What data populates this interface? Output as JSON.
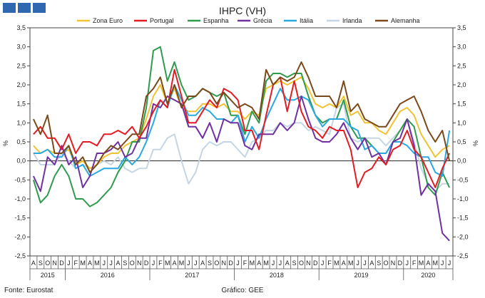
{
  "chart_data": {
    "type": "line",
    "title": "IHPC (VH)",
    "ylabel_left": "%",
    "ylabel_right": "%",
    "ylim": [
      -2.5,
      3.5
    ],
    "yticks": [
      "3,5",
      "3,0",
      "2,5",
      "2,0",
      "1,5",
      "1,0",
      "0,5",
      "0,0",
      "-0,5",
      "-1,0",
      "-1,5",
      "-2,0",
      "-2,5"
    ],
    "month_labels": [
      "A",
      "S",
      "O",
      "N",
      "D",
      "J",
      "F",
      "M",
      "A",
      "M",
      "J",
      "J",
      "A",
      "S",
      "O",
      "N",
      "D",
      "J",
      "F",
      "M",
      "A",
      "M",
      "J",
      "J",
      "A",
      "S",
      "O",
      "N",
      "D",
      "J",
      "F",
      "M",
      "A",
      "M",
      "J",
      "J",
      "A",
      "S",
      "O",
      "N",
      "D",
      "J",
      "F",
      "M",
      "A",
      "M",
      "J",
      "J",
      "A",
      "S",
      "O",
      "N",
      "D",
      "J",
      "F",
      "M",
      "A",
      "M",
      "J",
      "J"
    ],
    "year_labels": [
      {
        "label": "2015",
        "start": 0,
        "end": 4
      },
      {
        "label": "2016",
        "start": 5,
        "end": 16
      },
      {
        "label": "2017",
        "start": 17,
        "end": 28
      },
      {
        "label": "2018",
        "start": 29,
        "end": 40
      },
      {
        "label": "2019",
        "start": 41,
        "end": 52
      },
      {
        "label": "2020",
        "start": 53,
        "end": 59
      }
    ],
    "series": [
      {
        "name": "Zona Euro",
        "color": "#f1c232",
        "values": [
          0.4,
          0.2,
          0.3,
          0.2,
          0.2,
          0.3,
          -0.1,
          0.0,
          -0.2,
          -0.1,
          0.1,
          0.2,
          0.2,
          0.4,
          0.5,
          0.6,
          1.1,
          1.7,
          2.0,
          1.5,
          1.9,
          1.4,
          1.3,
          1.3,
          1.5,
          1.5,
          1.4,
          1.5,
          1.3,
          1.3,
          1.1,
          1.3,
          1.2,
          1.9,
          2.0,
          2.1,
          2.0,
          2.1,
          2.2,
          1.9,
          1.5,
          1.4,
          1.5,
          1.4,
          1.7,
          1.2,
          1.3,
          1.0,
          1.0,
          0.8,
          0.7,
          1.0,
          1.3,
          1.4,
          1.2,
          0.7,
          0.4,
          0.1,
          0.3,
          0.4
        ]
      },
      {
        "name": "Portugal",
        "color": "#e31c23",
        "values": [
          0.7,
          0.9,
          0.6,
          0.6,
          0.3,
          0.7,
          0.2,
          0.5,
          0.5,
          0.4,
          0.7,
          0.7,
          0.8,
          0.7,
          0.9,
          0.6,
          0.9,
          1.3,
          1.6,
          1.4,
          2.4,
          1.7,
          1.0,
          1.0,
          1.3,
          1.6,
          1.4,
          1.9,
          1.8,
          1.6,
          0.8,
          0.8,
          0.3,
          1.2,
          2.0,
          2.2,
          1.3,
          2.1,
          1.3,
          0.9,
          0.8,
          0.6,
          0.9,
          0.8,
          0.8,
          0.3,
          -0.7,
          -0.3,
          -0.2,
          0.1,
          -0.1,
          0.3,
          0.4,
          0.8,
          0.3,
          0.1,
          -0.3,
          -0.7,
          -0.2,
          0.2
        ]
      },
      {
        "name": "Espanha",
        "color": "#2e9b4e",
        "values": [
          -0.5,
          -1.1,
          -0.9,
          -0.4,
          -0.1,
          -0.4,
          -1.0,
          -1.0,
          -1.2,
          -1.1,
          -0.9,
          -0.7,
          -0.3,
          0.0,
          0.5,
          0.5,
          1.4,
          2.9,
          3.0,
          2.1,
          2.6,
          2.0,
          1.6,
          1.7,
          1.9,
          1.8,
          1.7,
          1.8,
          1.2,
          1.2,
          0.7,
          1.3,
          1.0,
          2.1,
          2.3,
          2.3,
          2.2,
          2.3,
          2.3,
          1.7,
          1.2,
          1.0,
          1.1,
          1.1,
          1.6,
          0.9,
          0.6,
          0.6,
          0.4,
          0.2,
          0.2,
          0.5,
          0.8,
          1.1,
          0.9,
          0.1,
          -0.7,
          -0.9,
          -0.3,
          -0.7
        ]
      },
      {
        "name": "Grécia",
        "color": "#7030a0",
        "values": [
          -0.4,
          -0.8,
          0.1,
          -0.1,
          0.4,
          -0.1,
          0.1,
          -0.7,
          -0.4,
          0.2,
          0.2,
          0.3,
          0.5,
          0.1,
          0.2,
          0.6,
          0.6,
          1.5,
          1.4,
          1.7,
          1.6,
          1.5,
          0.9,
          0.9,
          0.6,
          1.0,
          0.5,
          1.1,
          1.0,
          1.0,
          0.4,
          0.3,
          0.7,
          0.7,
          0.7,
          1.0,
          0.8,
          1.0,
          1.7,
          1.1,
          0.6,
          0.5,
          0.5,
          0.7,
          1.0,
          0.6,
          0.3,
          0.6,
          0.1,
          0.2,
          -0.1,
          0.5,
          0.6,
          1.1,
          0.4,
          -0.9,
          -0.6,
          -0.8,
          -1.9,
          -2.1
        ]
      },
      {
        "name": "Itália",
        "color": "#29a9e0",
        "values": [
          0.2,
          0.2,
          0.3,
          0.1,
          0.1,
          0.4,
          -0.2,
          -0.1,
          -0.4,
          -0.3,
          -0.2,
          -0.2,
          -0.2,
          0.1,
          -0.1,
          0.1,
          0.5,
          1.0,
          1.6,
          1.4,
          2.0,
          1.6,
          1.2,
          1.2,
          1.4,
          1.3,
          1.1,
          1.1,
          1.0,
          1.2,
          0.5,
          0.9,
          0.6,
          1.1,
          1.5,
          1.9,
          1.6,
          1.6,
          1.7,
          1.6,
          1.2,
          0.9,
          1.1,
          1.1,
          1.1,
          0.9,
          0.8,
          0.3,
          0.4,
          0.2,
          0.2,
          0.5,
          0.5,
          0.4,
          0.2,
          0.1,
          0.1,
          -0.3,
          -0.4,
          0.8
        ]
      },
      {
        "name": "Irlanda",
        "color": "#c5d5e4",
        "values": [
          0.2,
          -0.1,
          -0.1,
          -0.1,
          0.2,
          0.0,
          -0.2,
          -0.1,
          -0.2,
          -0.1,
          0.0,
          -0.1,
          0.1,
          -0.2,
          -0.3,
          -0.2,
          -0.2,
          0.3,
          0.3,
          0.6,
          0.7,
          0.0,
          -0.6,
          -0.3,
          0.3,
          0.5,
          0.4,
          0.5,
          0.5,
          0.3,
          0.1,
          0.5,
          0.6,
          0.8,
          0.8,
          1.0,
          0.9,
          1.0,
          1.0,
          0.8,
          0.9,
          0.8,
          0.7,
          1.4,
          1.5,
          0.6,
          0.5,
          0.6,
          0.6,
          0.6,
          0.4,
          0.6,
          0.8,
          1.1,
          0.5,
          -0.2,
          -0.6,
          -0.8,
          -0.6,
          -0.6
        ]
      },
      {
        "name": "Alemanha",
        "color": "#7b4a1b",
        "values": [
          1.1,
          0.7,
          1.2,
          0.2,
          0.2,
          0.4,
          -0.1,
          0.1,
          -0.3,
          -0.1,
          0.2,
          0.4,
          0.3,
          0.5,
          0.7,
          0.7,
          1.7,
          1.9,
          2.2,
          1.5,
          2.0,
          1.4,
          1.7,
          1.7,
          1.9,
          1.8,
          1.5,
          1.8,
          1.6,
          1.4,
          1.5,
          1.4,
          1.1,
          2.4,
          2.0,
          2.2,
          2.1,
          2.2,
          2.6,
          2.2,
          1.7,
          1.7,
          1.7,
          1.4,
          2.1,
          1.3,
          1.5,
          1.1,
          1.0,
          0.9,
          0.9,
          1.2,
          1.5,
          1.6,
          1.7,
          1.3,
          0.8,
          0.5,
          0.8,
          0.0
        ]
      }
    ]
  },
  "footer": {
    "source": "Fonte: Eurostat",
    "graphic": "Gráfico: GEE"
  }
}
